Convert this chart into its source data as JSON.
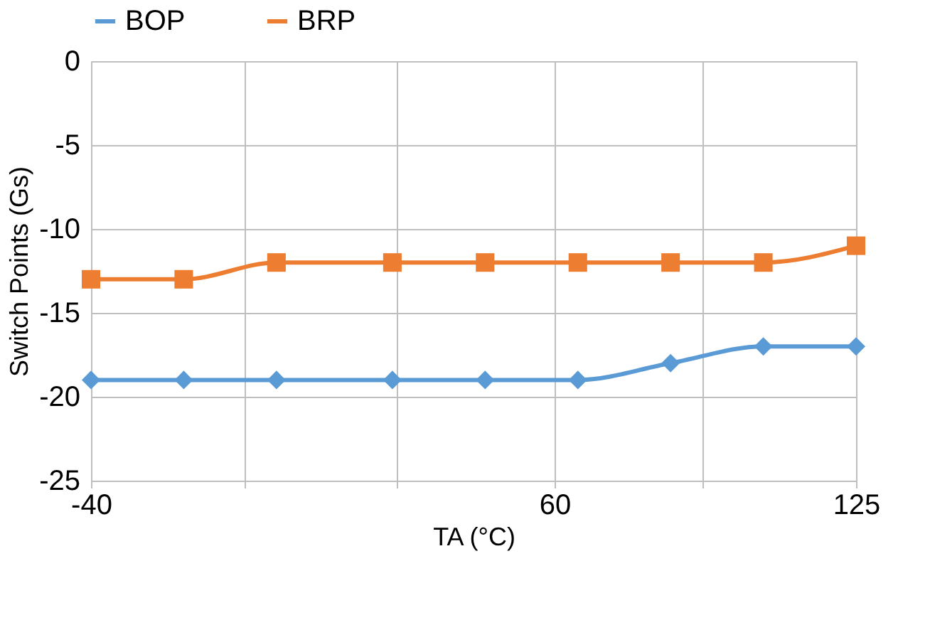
{
  "chart_data": {
    "type": "line",
    "xlabel": "TA (°C)",
    "ylabel": "Switch Points (Gs)",
    "x": [
      -40,
      -20,
      0,
      25,
      45,
      65,
      85,
      105,
      125
    ],
    "series": [
      {
        "name": "BOP",
        "color": "#5b9bd5",
        "marker": "diamond",
        "values": [
          -19,
          -19,
          -19,
          -19,
          -19,
          -19,
          -18,
          -17,
          -17
        ]
      },
      {
        "name": "BRP",
        "color": "#ed7d31",
        "marker": "square",
        "values": [
          -13,
          -13,
          -12,
          -12,
          -12,
          -12,
          -12,
          -12,
          -11
        ]
      }
    ],
    "xlim": [
      -40,
      125
    ],
    "xticks": [
      -40,
      {
        "value": -7,
        "label": null
      },
      {
        "value": 26,
        "label": null
      },
      60,
      {
        "value": 92,
        "label": null
      },
      125
    ],
    "ylim": [
      -25,
      0
    ],
    "yticks": [
      0,
      -5,
      -10,
      -15,
      -20,
      -25
    ],
    "grid": true,
    "legend": "top",
    "line_style": "solid"
  }
}
